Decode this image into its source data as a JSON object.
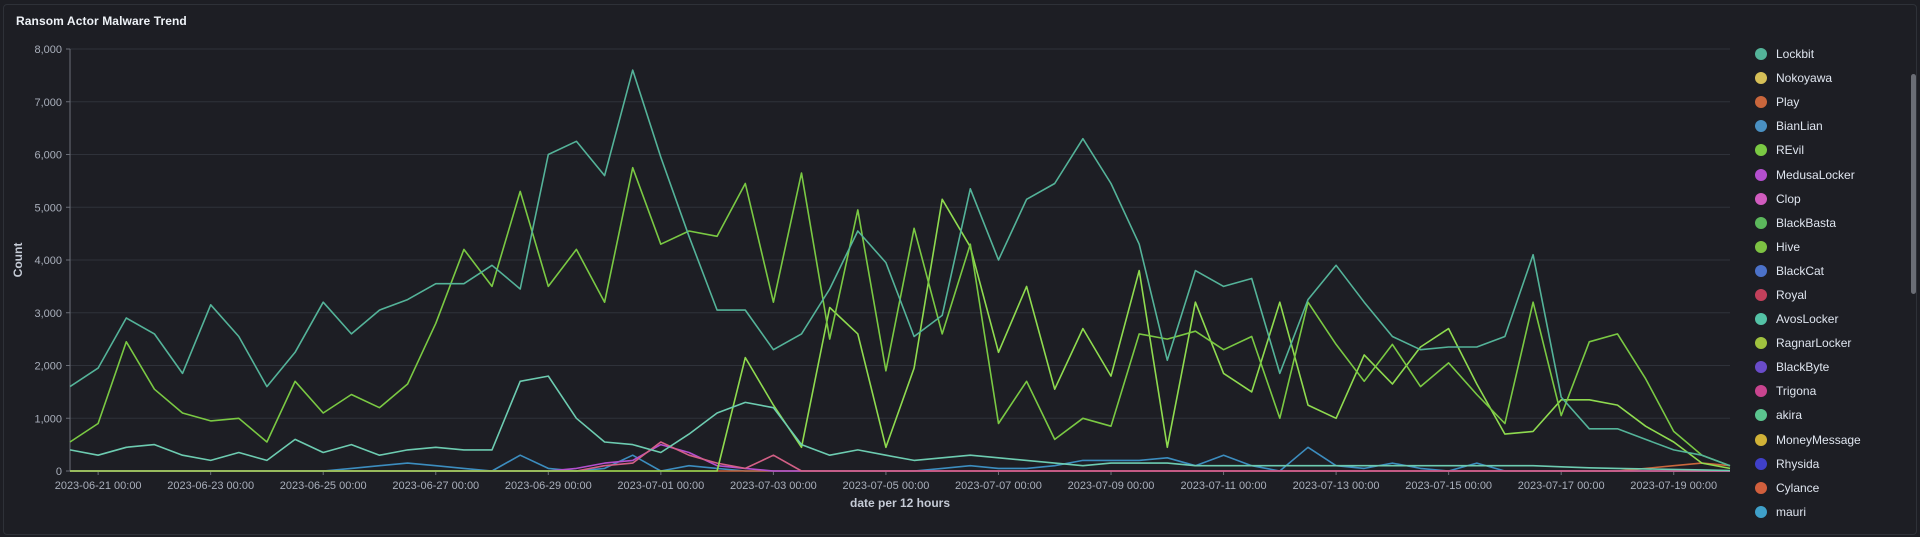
{
  "panel": {
    "title": "Ransom Actor Malware Trend"
  },
  "chart_data": {
    "type": "line",
    "title": "Ransom Actor Malware Trend",
    "xlabel": "date per 12 hours",
    "ylabel": "Count",
    "ylim": [
      0,
      8000
    ],
    "yticks": [
      "0",
      "1,000",
      "2,000",
      "3,000",
      "4,000",
      "5,000",
      "6,000",
      "7,000",
      "8,000"
    ],
    "xtick_labels": [
      "2023-06-21 00:00",
      "2023-06-23 00:00",
      "2023-06-25 00:00",
      "2023-06-27 00:00",
      "2023-06-29 00:00",
      "2023-07-01 00:00",
      "2023-07-03 00:00",
      "2023-07-05 00:00",
      "2023-07-07 00:00",
      "2023-07-09 00:00",
      "2023-07-11 00:00",
      "2023-07-13 00:00",
      "2023-07-15 00:00",
      "2023-07-17 00:00",
      "2023-07-19 00:00"
    ],
    "x_start_index": 0,
    "grid": "horizontal",
    "legend_position": "right",
    "series": [
      {
        "name": "Lockbit",
        "color": "#54b399",
        "values": [
          1600,
          1950,
          2900,
          2600,
          1850,
          3150,
          2550,
          1600,
          2250,
          3200,
          2600,
          3050,
          3250,
          3550,
          3550,
          3900,
          3450,
          6000,
          6250,
          5600,
          7600,
          5950,
          4450,
          3050,
          3050,
          2300,
          2600,
          3450,
          4550,
          3950,
          2550,
          2950,
          5350,
          4000,
          5150,
          5450,
          6300,
          5450,
          4300,
          2100,
          3800,
          3500,
          3650,
          1850,
          3250,
          3900,
          3200,
          2550,
          2300,
          2350,
          2350,
          2550,
          4100,
          1400,
          800,
          800,
          600,
          400,
          300,
          100
        ]
      },
      {
        "name": "AvosLocker",
        "color": "#6dccb1",
        "values": [
          400,
          300,
          450,
          500,
          300,
          200,
          350,
          200,
          600,
          350,
          500,
          300,
          400,
          450,
          400,
          400,
          1700,
          1800,
          1000,
          550,
          500,
          350,
          700,
          1100,
          1300,
          1200,
          500,
          300,
          400,
          300,
          200,
          250,
          300,
          250,
          200,
          150,
          100,
          150,
          150,
          150,
          100,
          100,
          100,
          100,
          100,
          100,
          100,
          100,
          100,
          100,
          100,
          100,
          100,
          80,
          60,
          50,
          40,
          30,
          20,
          10
        ]
      },
      {
        "name": "REvil",
        "color": "#7ac943",
        "values": [
          550,
          900,
          2450,
          1550,
          1100,
          950,
          1000,
          550,
          1700,
          1100,
          1450,
          1200,
          1650,
          2800,
          4200,
          3500,
          5300,
          3500,
          4200,
          3200,
          5750,
          4300,
          4550,
          4450,
          5450,
          3200,
          5650,
          2500,
          4950,
          1900,
          4600,
          2600,
          4300,
          900,
          1700,
          600,
          1000,
          850,
          2600,
          2500,
          2650,
          2300,
          2550,
          1000,
          3200,
          2400,
          1700,
          2400,
          1600,
          2050,
          1450,
          900,
          3200,
          1050,
          2450,
          2600,
          1750,
          750,
          300,
          100
        ]
      },
      {
        "name": "Hive",
        "color": "#8fdb4f",
        "values": [
          0,
          0,
          0,
          0,
          0,
          0,
          0,
          0,
          0,
          0,
          0,
          0,
          0,
          0,
          0,
          0,
          0,
          0,
          0,
          0,
          0,
          0,
          0,
          0,
          2150,
          1250,
          450,
          3100,
          2600,
          450,
          1950,
          5150,
          4250,
          2250,
          3500,
          1550,
          2700,
          1800,
          3800,
          450,
          3200,
          1850,
          1500,
          3200,
          1250,
          1000,
          2200,
          1650,
          2350,
          2700,
          1650,
          700,
          750,
          1350,
          1350,
          1250,
          850,
          550,
          150,
          50
        ]
      },
      {
        "name": "Clop",
        "color": "#d36086",
        "values": [
          0,
          0,
          0,
          0,
          0,
          0,
          0,
          0,
          0,
          0,
          0,
          0,
          0,
          0,
          0,
          0,
          0,
          0,
          0,
          100,
          150,
          550,
          300,
          150,
          50,
          300,
          0,
          0,
          0,
          0,
          0,
          0,
          0,
          0,
          0,
          0,
          0,
          0,
          0,
          0,
          0,
          0,
          0,
          0,
          0,
          0,
          0,
          0,
          0,
          0,
          0,
          0,
          0,
          0,
          0,
          0,
          0,
          0,
          0,
          0
        ]
      },
      {
        "name": "MedusaLocker",
        "color": "#b44fcf",
        "values": [
          0,
          0,
          0,
          0,
          0,
          0,
          0,
          0,
          0,
          0,
          0,
          0,
          0,
          0,
          0,
          0,
          0,
          0,
          50,
          150,
          200,
          500,
          350,
          100,
          50,
          0,
          0,
          0,
          0,
          0,
          0,
          0,
          0,
          0,
          0,
          0,
          0,
          0,
          0,
          0,
          0,
          0,
          0,
          0,
          0,
          0,
          0,
          0,
          0,
          0,
          0,
          0,
          0,
          0,
          0,
          0,
          0,
          0,
          0,
          0
        ]
      },
      {
        "name": "Cylance",
        "color": "#c9663c",
        "values": [
          0,
          0,
          0,
          0,
          0,
          0,
          0,
          0,
          0,
          0,
          0,
          0,
          0,
          0,
          0,
          0,
          0,
          0,
          0,
          0,
          0,
          0,
          0,
          0,
          0,
          0,
          0,
          0,
          0,
          0,
          0,
          0,
          0,
          0,
          0,
          0,
          0,
          0,
          0,
          0,
          0,
          0,
          0,
          0,
          0,
          0,
          0,
          0,
          0,
          0,
          0,
          0,
          0,
          0,
          0,
          0,
          50,
          100,
          150,
          100
        ]
      },
      {
        "name": "mauri",
        "color": "#3c8dbf",
        "values": [
          0,
          0,
          0,
          0,
          0,
          0,
          0,
          0,
          0,
          0,
          50,
          100,
          150,
          100,
          50,
          0,
          300,
          50,
          0,
          50,
          300,
          0,
          100,
          50,
          0,
          0,
          0,
          0,
          0,
          0,
          0,
          50,
          100,
          50,
          50,
          100,
          200,
          200,
          200,
          250,
          100,
          300,
          100,
          0,
          450,
          100,
          50,
          150,
          50,
          0,
          150,
          0,
          0,
          0,
          0,
          0,
          0,
          0,
          0,
          0
        ]
      }
    ],
    "legend": [
      {
        "name": "Lockbit",
        "color": "#54b399"
      },
      {
        "name": "Nokoyawa",
        "color": "#d6bf57"
      },
      {
        "name": "Play",
        "color": "#c9663c"
      },
      {
        "name": "BianLian",
        "color": "#4a90c2"
      },
      {
        "name": "REvil",
        "color": "#7ac943"
      },
      {
        "name": "MedusaLocker",
        "color": "#b44fcf"
      },
      {
        "name": "Clop",
        "color": "#d15cbf"
      },
      {
        "name": "BlackBasta",
        "color": "#5cb85c"
      },
      {
        "name": "Hive",
        "color": "#7dc243"
      },
      {
        "name": "BlackCat",
        "color": "#4c72c9"
      },
      {
        "name": "Royal",
        "color": "#c2405b"
      },
      {
        "name": "AvosLocker",
        "color": "#54c2a6"
      },
      {
        "name": "RagnarLocker",
        "color": "#a0c23f"
      },
      {
        "name": "BlackByte",
        "color": "#6a4cc9"
      },
      {
        "name": "Trigona",
        "color": "#c9448f"
      },
      {
        "name": "akira",
        "color": "#5bc58f"
      },
      {
        "name": "MoneyMessage",
        "color": "#d1b237"
      },
      {
        "name": "Rhysida",
        "color": "#4040c9"
      },
      {
        "name": "Cylance",
        "color": "#d15f3d"
      },
      {
        "name": "mauri",
        "color": "#3fa0c9"
      }
    ]
  }
}
